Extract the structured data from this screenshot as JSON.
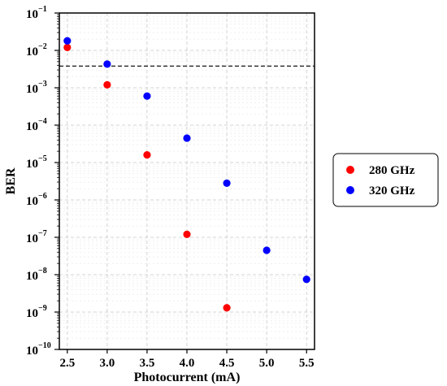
{
  "chart_data": {
    "type": "scatter",
    "xlabel": "Photocurrent (mA)",
    "ylabel": "BER",
    "xlim": [
      2.4,
      5.6
    ],
    "ylim": [
      1e-10,
      0.1
    ],
    "yscale": "log",
    "grid": true,
    "legend_position": "outside-right",
    "x_ticks": [
      "2.5",
      "3.0",
      "3.5",
      "4.0",
      "4.5",
      "5.0",
      "5.5"
    ],
    "y_ticks": [
      {
        "base": "10",
        "exp": "−1",
        "value": 0.1
      },
      {
        "base": "10",
        "exp": "−2",
        "value": 0.01
      },
      {
        "base": "10",
        "exp": "−3",
        "value": 0.001
      },
      {
        "base": "10",
        "exp": "−4",
        "value": 0.0001
      },
      {
        "base": "10",
        "exp": "−5",
        "value": 1e-05
      },
      {
        "base": "10",
        "exp": "−6",
        "value": 1e-06
      },
      {
        "base": "10",
        "exp": "−7",
        "value": 1e-07
      },
      {
        "base": "10",
        "exp": "−8",
        "value": 1e-08
      },
      {
        "base": "10",
        "exp": "−9",
        "value": 1e-09
      },
      {
        "base": "10",
        "exp": "−10",
        "value": 1e-10
      }
    ],
    "threshold": 0.0038,
    "series": [
      {
        "name": "280 GHz",
        "color": "#ff0000",
        "x": [
          2.5,
          3.0,
          3.5,
          4.0,
          4.5
        ],
        "y": [
          0.012,
          0.0012,
          1.6e-05,
          1.2e-07,
          1.3e-09
        ]
      },
      {
        "name": "320 GHz",
        "color": "#0000ff",
        "x": [
          2.5,
          3.0,
          3.5,
          4.0,
          4.5,
          5.0,
          5.5
        ],
        "y": [
          0.018,
          0.0043,
          0.0006,
          4.5e-05,
          2.8e-06,
          4.5e-08,
          7.5e-09
        ]
      }
    ]
  }
}
